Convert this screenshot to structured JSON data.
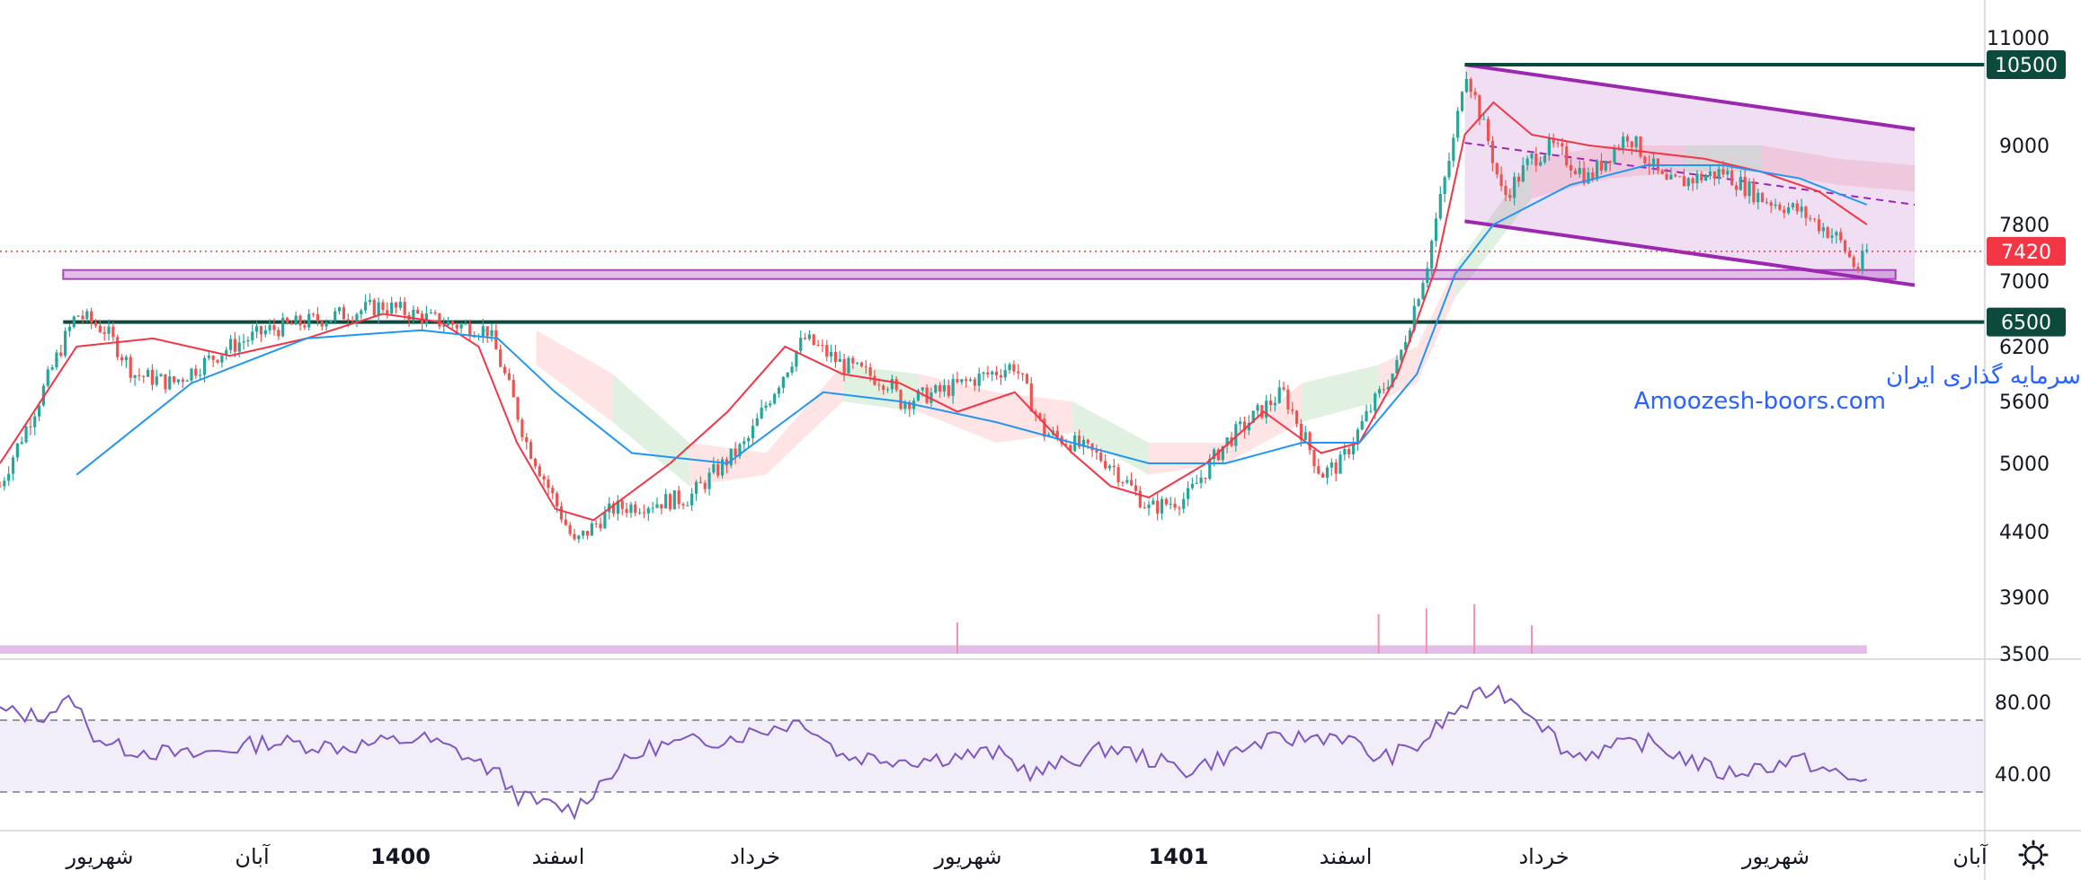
{
  "chart_data": {
    "type": "candlestick",
    "watermark": {
      "line1": "انجمن خبرگان سرمایه گذاری ایران",
      "line2": "Amoozesh-boors.com"
    },
    "price_axis": {
      "ticks": [
        11000,
        9000,
        7800,
        7000,
        6200,
        5600,
        5000,
        4400,
        3900,
        3500
      ],
      "tick_labels": [
        "11000",
        "9000",
        "7800",
        "7000",
        "6200",
        "5600",
        "5000",
        "4400",
        "3900",
        "3500"
      ]
    },
    "price_tags": [
      {
        "value": 10500,
        "label": "10500",
        "color": "#0b4a3c"
      },
      {
        "value": 7420,
        "label": "7420",
        "color": "#f23645"
      },
      {
        "value": 6500,
        "label": "6500",
        "color": "#0b4a3c"
      }
    ],
    "horizontal_lines": [
      {
        "value": 10500,
        "color": "#0b4a3c"
      },
      {
        "value": 6500,
        "color": "#0b4a3c"
      }
    ],
    "support_zone": {
      "from": 6980,
      "to": 7080,
      "color": "#ab47bc"
    },
    "channel": {
      "upper": [
        [
          0.765,
          10500
        ],
        [
          1.0,
          9300
        ]
      ],
      "lower": [
        [
          0.765,
          7850
        ],
        [
          1.0,
          6950
        ]
      ],
      "mid": [
        [
          0.765,
          9050
        ],
        [
          1.0,
          8100
        ]
      ],
      "color": "#9c27b0"
    },
    "time_axis": {
      "labels": [
        "شهریور",
        "آبان",
        "1400",
        "اسفند",
        "خرداد",
        "شهریور",
        "1401",
        "اسفند",
        "خرداد",
        "شهریور",
        "آبان"
      ],
      "bold": [
        "1400",
        "1401"
      ]
    },
    "price_series": {
      "x": [
        0,
        0.02,
        0.04,
        0.055,
        0.07,
        0.09,
        0.12,
        0.14,
        0.16,
        0.2,
        0.23,
        0.255,
        0.275,
        0.3,
        0.32,
        0.36,
        0.39,
        0.42,
        0.44,
        0.465,
        0.47,
        0.49,
        0.53,
        0.545,
        0.56,
        0.58,
        0.6,
        0.62,
        0.64,
        0.67,
        0.69,
        0.7,
        0.73,
        0.745,
        0.76,
        0.765,
        0.785,
        0.8,
        0.81,
        0.83,
        0.85,
        0.87,
        0.9,
        0.92,
        0.94,
        0.96,
        0.97,
        0.975
      ],
      "close": [
        4800,
        5600,
        6600,
        6400,
        5900,
        5800,
        6200,
        6400,
        6500,
        6700,
        6500,
        6400,
        5200,
        4300,
        4600,
        4700,
        5200,
        6300,
        6000,
        5800,
        5600,
        5700,
        6000,
        5300,
        5200,
        5000,
        4600,
        4700,
        5200,
        5700,
        4900,
        5000,
        6000,
        7200,
        9200,
        10500,
        8200,
        8800,
        9000,
        8500,
        9200,
        8400,
        8600,
        8200,
        8000,
        7600,
        7150,
        7420
      ]
    },
    "ma_red": {
      "x": [
        0,
        0.04,
        0.08,
        0.12,
        0.16,
        0.2,
        0.23,
        0.25,
        0.27,
        0.29,
        0.31,
        0.35,
        0.38,
        0.41,
        0.44,
        0.47,
        0.5,
        0.53,
        0.56,
        0.58,
        0.6,
        0.63,
        0.66,
        0.69,
        0.71,
        0.73,
        0.75,
        0.765,
        0.78,
        0.8,
        0.83,
        0.86,
        0.89,
        0.92,
        0.95,
        0.975
      ],
      "value": [
        5000,
        6200,
        6300,
        6100,
        6300,
        6600,
        6500,
        6200,
        5200,
        4600,
        4500,
        5000,
        5500,
        6200,
        5900,
        5800,
        5500,
        5700,
        5100,
        4800,
        4700,
        5000,
        5500,
        5100,
        5200,
        5900,
        7200,
        9200,
        9800,
        9200,
        9000,
        8900,
        8800,
        8600,
        8300,
        7800
      ]
    },
    "ma_blue": {
      "x": [
        0.04,
        0.1,
        0.16,
        0.22,
        0.26,
        0.29,
        0.33,
        0.38,
        0.43,
        0.47,
        0.52,
        0.56,
        0.6,
        0.64,
        0.68,
        0.71,
        0.74,
        0.76,
        0.78,
        0.82,
        0.86,
        0.9,
        0.94,
        0.975
      ],
      "value": [
        4900,
        5800,
        6300,
        6400,
        6300,
        5700,
        5100,
        5000,
        5700,
        5600,
        5400,
        5200,
        5000,
        5000,
        5200,
        5200,
        5900,
        7100,
        7800,
        8400,
        8700,
        8700,
        8500,
        8100
      ]
    },
    "cloud": {
      "x": [
        0.28,
        0.32,
        0.36,
        0.4,
        0.44,
        0.48,
        0.52,
        0.56,
        0.6,
        0.64,
        0.68,
        0.72,
        0.74,
        0.76,
        0.8,
        0.84,
        0.88,
        0.92,
        0.96,
        1.0
      ],
      "top": [
        6400,
        5900,
        5200,
        5100,
        6000,
        5900,
        5700,
        5600,
        5200,
        5200,
        5800,
        6000,
        6200,
        7200,
        8800,
        9000,
        9000,
        9000,
        8800,
        8700
      ],
      "bottom": [
        6000,
        5400,
        4800,
        4900,
        5600,
        5500,
        5200,
        5300,
        4900,
        5000,
        5400,
        5600,
        5800,
        6800,
        8200,
        8500,
        8600,
        8600,
        8400,
        8300
      ],
      "bull_color": "#c8e6c9",
      "bear_color": "#ffcdd2"
    },
    "volume": {
      "base": 3500,
      "level": 3560,
      "spikes": [
        [
          0.5,
          3720
        ],
        [
          0.72,
          3780
        ],
        [
          0.745,
          3820
        ],
        [
          0.77,
          3850
        ],
        [
          0.8,
          3700
        ]
      ]
    },
    "rsi": {
      "axis_ticks": [
        80,
        40
      ],
      "tick_labels": [
        "80.00",
        "40.00"
      ],
      "band": [
        70,
        30
      ],
      "x": [
        0,
        0.02,
        0.04,
        0.045,
        0.06,
        0.1,
        0.14,
        0.18,
        0.22,
        0.24,
        0.26,
        0.27,
        0.28,
        0.3,
        0.32,
        0.34,
        0.38,
        0.42,
        0.44,
        0.48,
        0.52,
        0.54,
        0.58,
        0.62,
        0.66,
        0.7,
        0.72,
        0.74,
        0.76,
        0.78,
        0.8,
        0.82,
        0.86,
        0.9,
        0.94,
        0.97,
        0.975
      ],
      "value": [
        75,
        72,
        82,
        65,
        55,
        50,
        58,
        55,
        60,
        52,
        40,
        28,
        24,
        20,
        42,
        55,
        60,
        70,
        50,
        48,
        52,
        40,
        55,
        42,
        58,
        62,
        48,
        55,
        75,
        88,
        75,
        50,
        58,
        40,
        48,
        35,
        38
      ],
      "color": "#7e57c2"
    }
  }
}
